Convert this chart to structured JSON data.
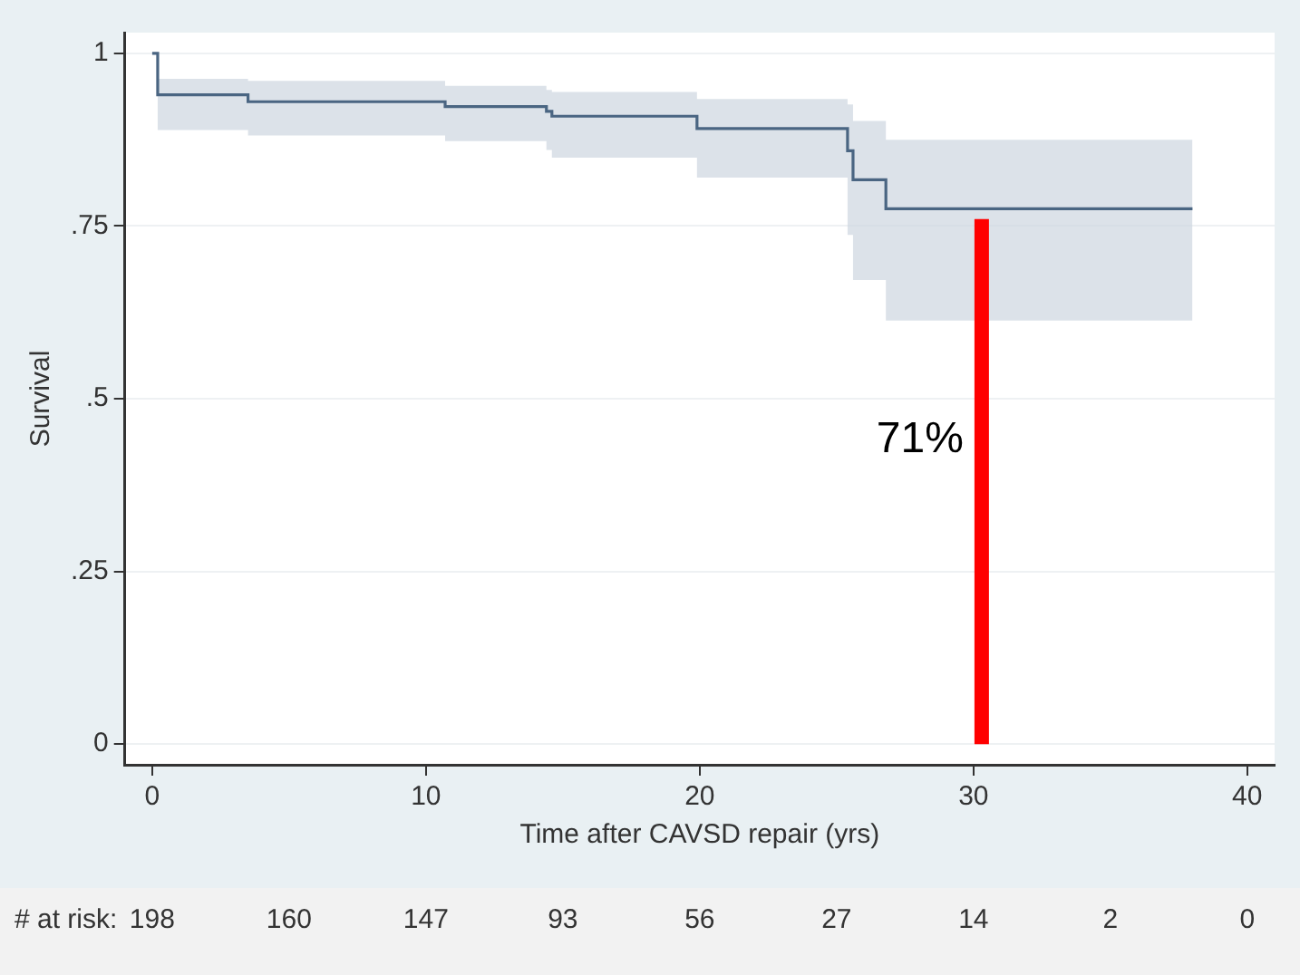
{
  "chart_data": {
    "type": "step",
    "xlabel": "Time after CAVSD repair (yrs)",
    "ylabel": "Survival",
    "xlim": [
      -1,
      41
    ],
    "xticks": [
      0,
      10,
      20,
      30,
      40
    ],
    "ylim": [
      -0.03,
      1.03
    ],
    "yticks": [
      {
        "value": 0,
        "label": "0"
      },
      {
        "value": 0.25,
        "label": ".25"
      },
      {
        "value": 0.5,
        "label": ".5"
      },
      {
        "value": 0.75,
        "label": ".75"
      },
      {
        "value": 1,
        "label": "1"
      }
    ],
    "grid": "y",
    "legend": false,
    "series": [
      {
        "color": "#4a6582",
        "x": [
          0,
          0.2,
          3.5,
          10.7,
          14.4,
          14.6,
          19.9,
          25.4,
          25.6,
          26.8,
          38
        ],
        "values": [
          1,
          0.94,
          0.93,
          0.923,
          0.916,
          0.909,
          0.891,
          0.859,
          0.817,
          0.775,
          0.775
        ],
        "lower": [
          1,
          0.889,
          0.881,
          0.873,
          0.86,
          0.849,
          0.82,
          0.737,
          0.672,
          0.613,
          0.613
        ],
        "upper": [
          1,
          0.963,
          0.96,
          0.953,
          0.947,
          0.944,
          0.934,
          0.926,
          0.902,
          0.875,
          0.875
        ]
      },
      {
        "type": "line",
        "color": "#ff0000",
        "x": [
          30.3,
          30.3
        ],
        "values": [
          0,
          0.76
        ]
      }
    ],
    "annotations": [
      {
        "text": "71%",
        "x": 30.3,
        "y": 0.44
      },
      "# at risk:",
      "198",
      "160",
      "147",
      "93",
      "56",
      "27",
      "14",
      "2",
      "0"
    ]
  }
}
